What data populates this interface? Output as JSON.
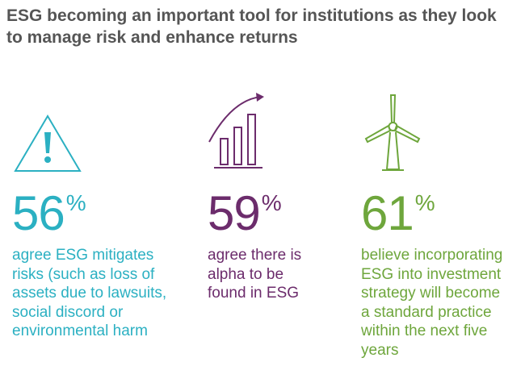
{
  "header": {
    "title": "ESG becoming an important tool for institutions as they look to manage risk and enhance returns"
  },
  "stats": [
    {
      "number": "56",
      "unit": "%",
      "color": "#2bb0c2",
      "lines": [
        "agree ESG mitigates",
        "risks (such as loss of",
        "assets due to lawsuits,",
        "social discord or",
        "environmental harm"
      ]
    },
    {
      "number": "59",
      "unit": "%",
      "color": "#6c2c6c",
      "lines": [
        "agree there is",
        "alpha to be",
        "found in ESG"
      ]
    },
    {
      "number": "61",
      "unit": "%",
      "color": "#6ea63c",
      "lines": [
        "believe incorporating",
        "ESG into investment",
        "strategy will become",
        "a standard practice",
        "within the next five",
        "years"
      ]
    }
  ]
}
